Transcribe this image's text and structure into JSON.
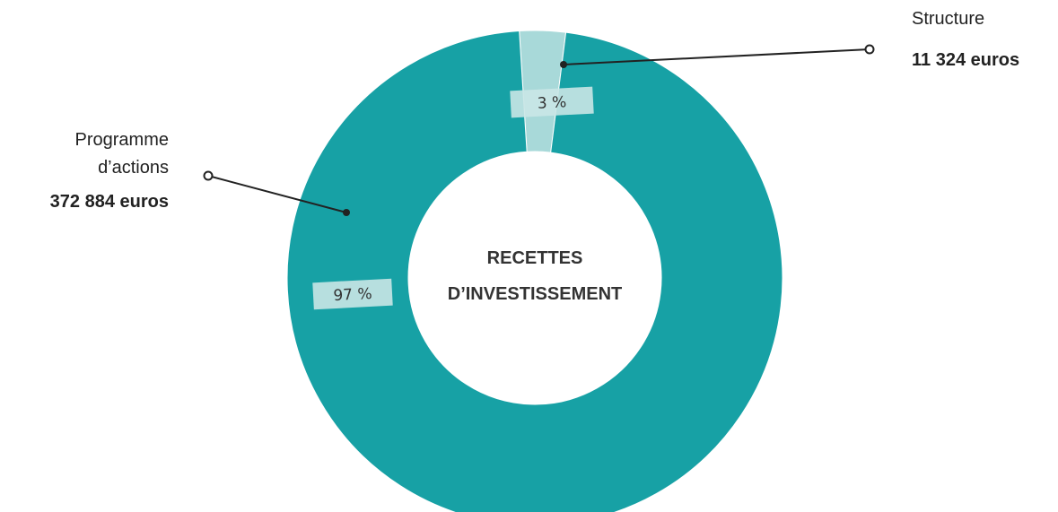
{
  "chart_data": {
    "type": "donut",
    "title": "RECETTES D’INVESTISSEMENT",
    "categories": [
      "Structure",
      "Programme d’actions"
    ],
    "values": [
      3,
      97
    ],
    "value_labels": [
      "3 %",
      "97 %"
    ],
    "amounts": [
      "11 324 euros",
      "372 884 euros"
    ],
    "colors": [
      "#a8d9d9",
      "#17a1a5"
    ]
  }
}
